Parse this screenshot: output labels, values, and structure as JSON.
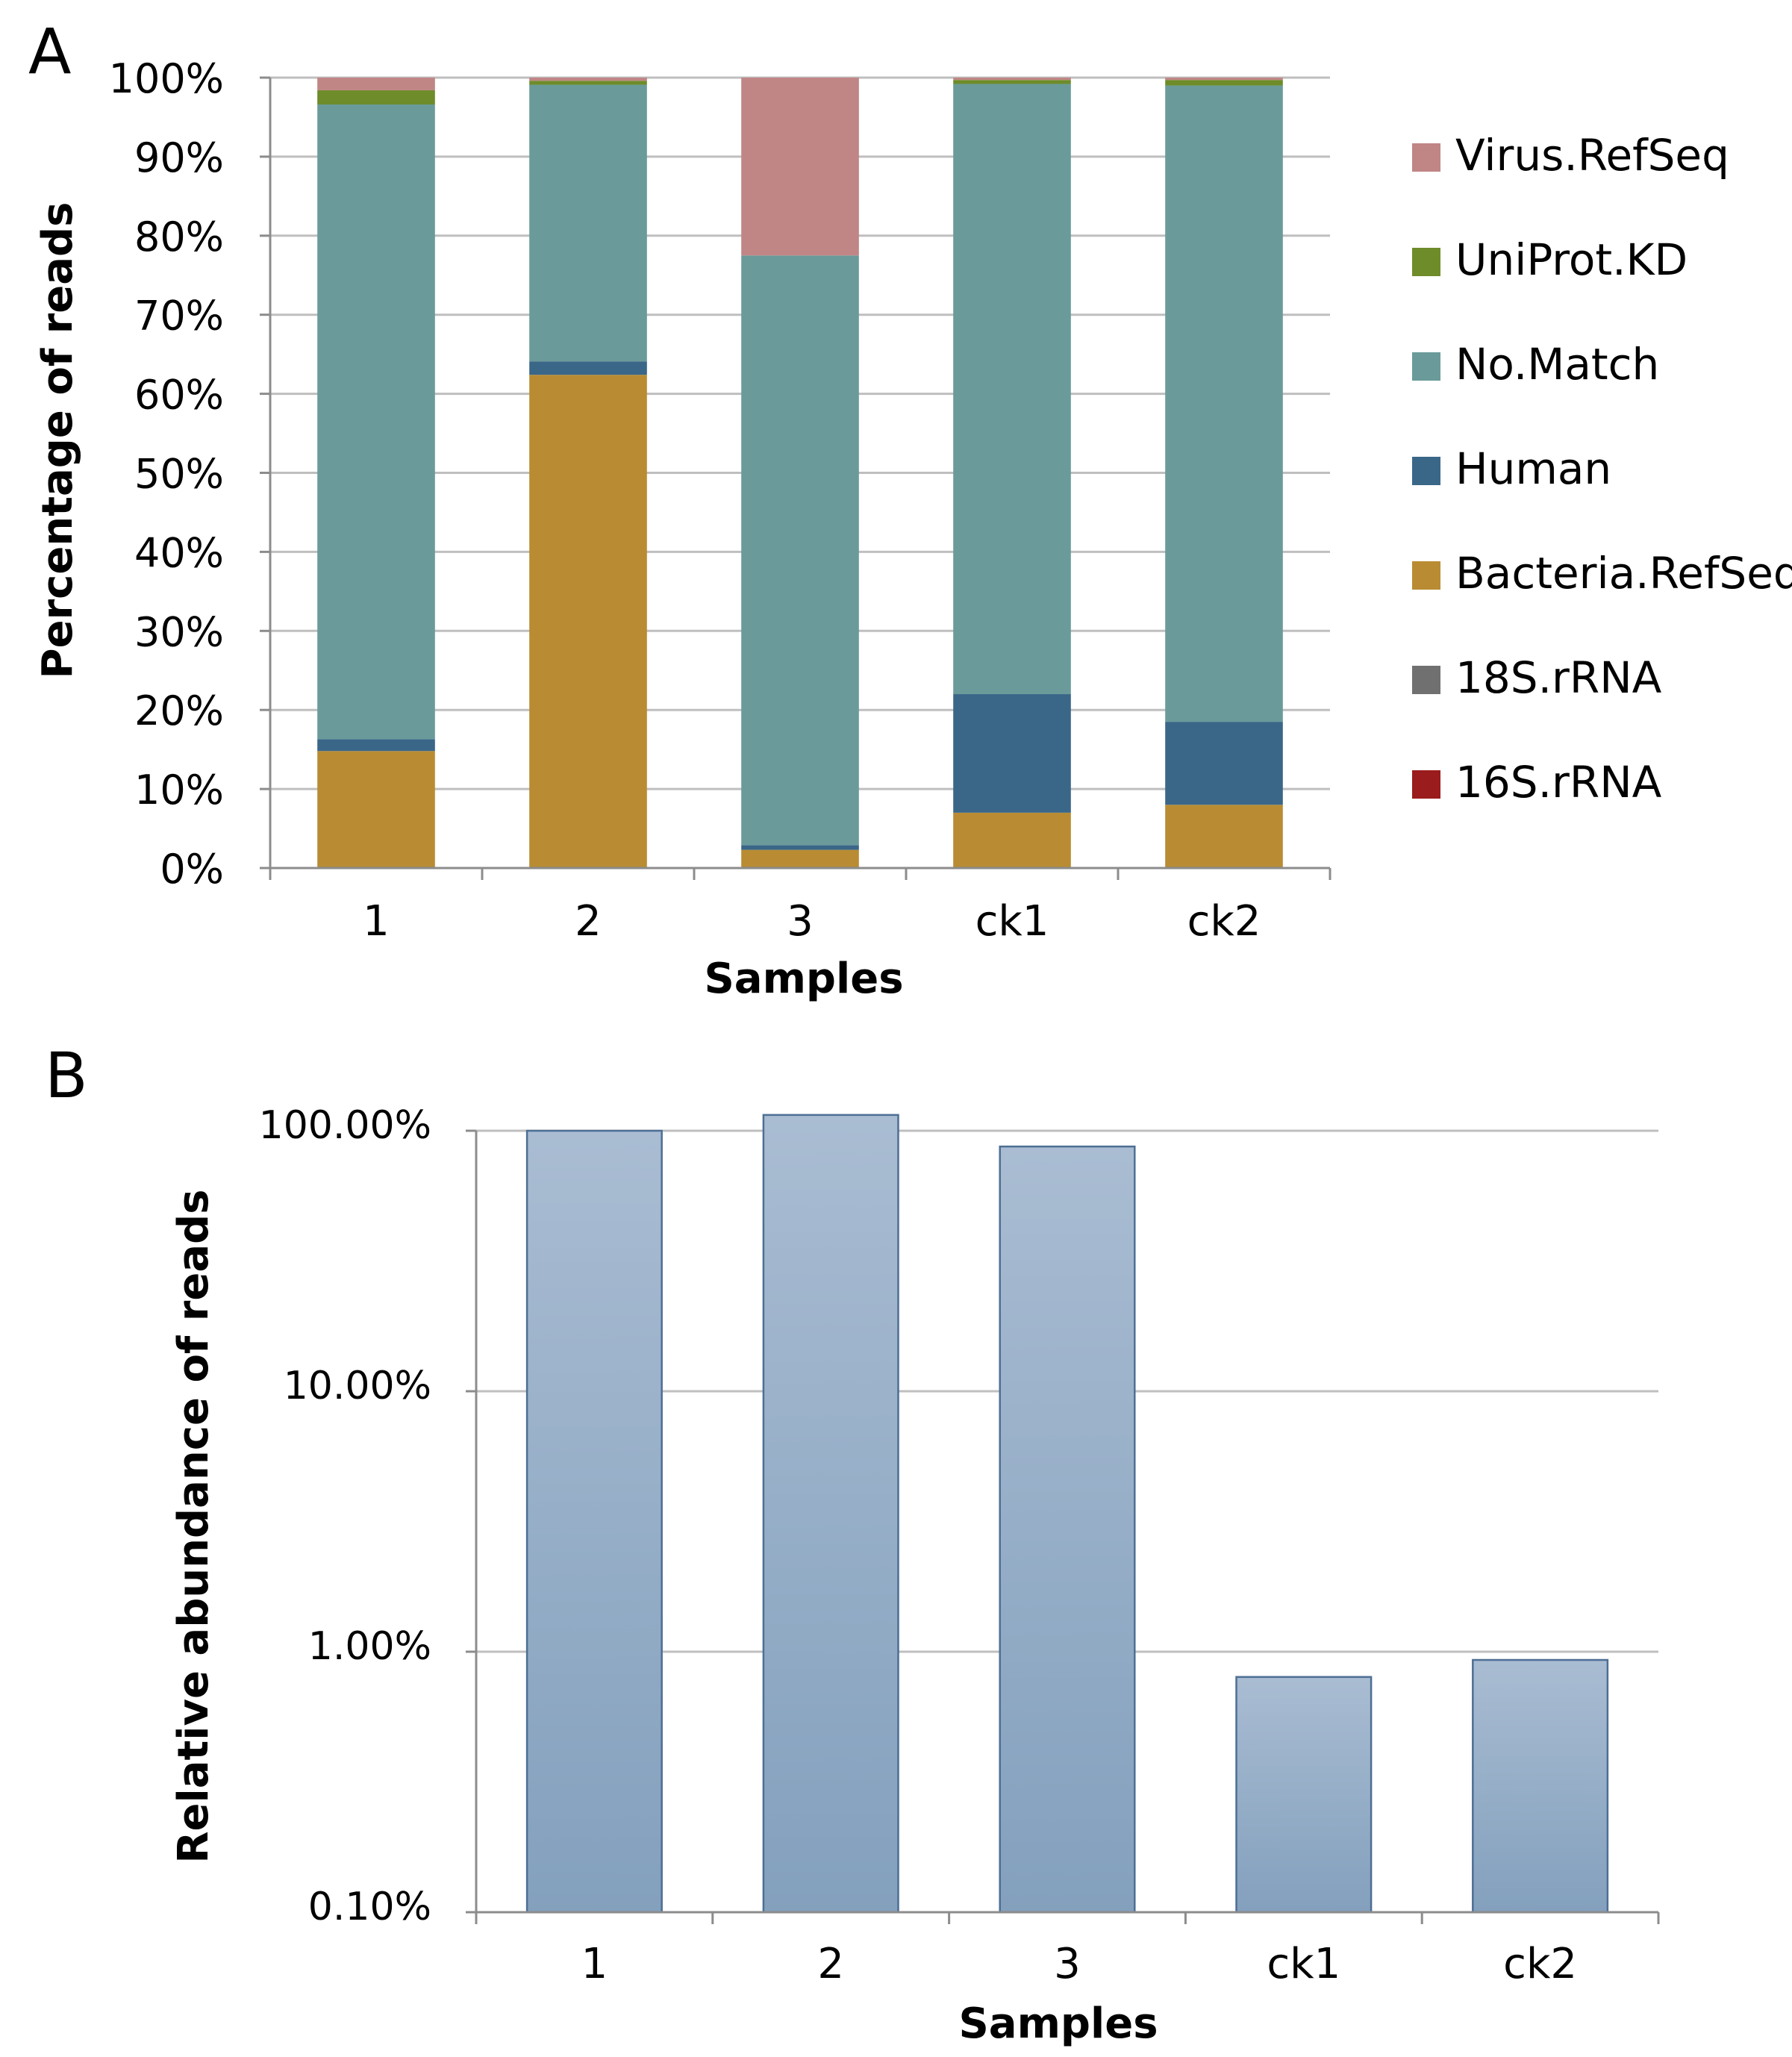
{
  "panels": {
    "a_label": "A",
    "b_label": "B"
  },
  "colors": {
    "Virus.RefSeq": "#c08585",
    "UniProt.KD": "#6e8c2a",
    "No.Match": "#6a9b9a",
    "Human": "#3a6788",
    "Bacteria.RefSeq": "#b98c33",
    "18S.rRNA": "#707070",
    "16S.rRNA": "#9a1c1c",
    "grid": "#bfbfbf",
    "axis": "#8c8c8c",
    "bar_b_top": "#a9bcd2",
    "bar_b_bottom": "#83a0bd",
    "bar_b_stroke": "#4d6f94"
  },
  "chart_data": [
    {
      "type": "bar",
      "stacked": true,
      "panel": "A",
      "title": "",
      "xlabel": "Samples",
      "ylabel": "Percentage of reads",
      "ylim": [
        0,
        100
      ],
      "yticks": [
        "0%",
        "10%",
        "20%",
        "30%",
        "40%",
        "50%",
        "60%",
        "70%",
        "80%",
        "90%",
        "100%"
      ],
      "categories": [
        "1",
        "2",
        "3",
        "ck1",
        "ck2"
      ],
      "legend_position": "right",
      "series": [
        {
          "name": "16S.rRNA",
          "values": [
            0,
            0,
            0,
            0,
            0
          ]
        },
        {
          "name": "18S.rRNA",
          "values": [
            0,
            0,
            0,
            0,
            0
          ]
        },
        {
          "name": "Bacteria.RefSeq",
          "values": [
            14.8,
            62.4,
            2.3,
            7.0,
            8.0
          ]
        },
        {
          "name": "Human",
          "values": [
            1.5,
            1.7,
            0.6,
            15.0,
            10.5
          ]
        },
        {
          "name": "No.Match",
          "values": [
            80.3,
            35.0,
            74.6,
            77.2,
            80.5
          ]
        },
        {
          "name": "UniProt.KD",
          "values": [
            1.8,
            0.5,
            0.0,
            0.5,
            0.7
          ]
        },
        {
          "name": "Virus.RefSeq",
          "values": [
            1.6,
            0.4,
            22.5,
            0.3,
            0.3
          ]
        }
      ],
      "legend_order": [
        "Virus.RefSeq",
        "UniProt.KD",
        "No.Match",
        "Human",
        "Bacteria.RefSeq",
        "18S.rRNA",
        "16S.rRNA"
      ]
    },
    {
      "type": "bar",
      "panel": "B",
      "title": "",
      "xlabel": "Samples",
      "ylabel": "Relative abundance of reads",
      "yscale": "log",
      "ylim": [
        0.1,
        100
      ],
      "yticks": [
        "0.10%",
        "1.00%",
        "10.00%",
        "100.00%"
      ],
      "ytick_values": [
        0.1,
        1,
        10,
        100
      ],
      "categories": [
        "1",
        "2",
        "3",
        "ck1",
        "ck2"
      ],
      "values": [
        100,
        115,
        87,
        0.8,
        0.93
      ]
    }
  ]
}
